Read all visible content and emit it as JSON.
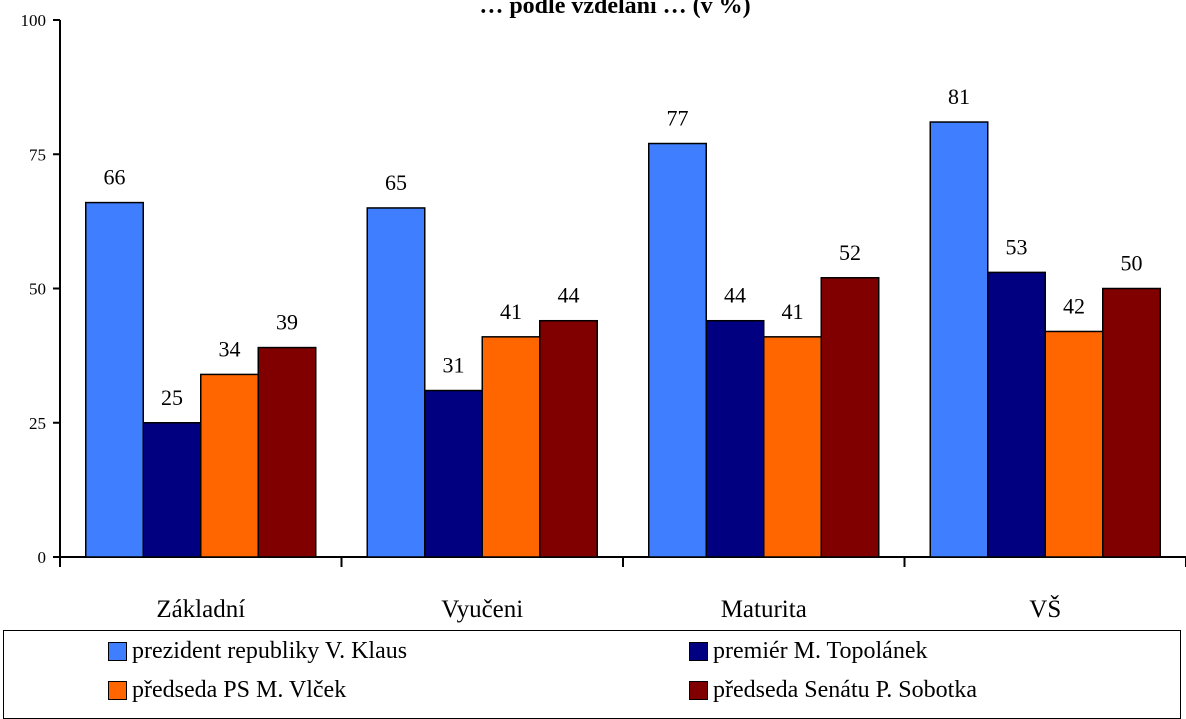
{
  "chart_data": {
    "type": "bar",
    "title": "… podle vzdělání … (v %)",
    "categories": [
      "Základní",
      "Vyučeni",
      "Maturita",
      "VŠ"
    ],
    "ylim": [
      0,
      100
    ],
    "yticks": [
      "0",
      "25",
      "50",
      "75",
      "100"
    ],
    "grid": false,
    "legend_position": "bottom",
    "series": [
      {
        "name": "prezident republiky V. Klaus",
        "color": "#3f7fff",
        "values": [
          66,
          65,
          77,
          81
        ]
      },
      {
        "name": "premiér M. Topolánek",
        "color": "#000080",
        "values": [
          25,
          31,
          44,
          53
        ]
      },
      {
        "name": "předseda PS M. Vlček",
        "color": "#ff6600",
        "values": [
          34,
          41,
          41,
          42
        ]
      },
      {
        "name": "předseda Senátu P. Sobotka",
        "color": "#800000",
        "values": [
          39,
          44,
          52,
          50
        ]
      }
    ]
  }
}
